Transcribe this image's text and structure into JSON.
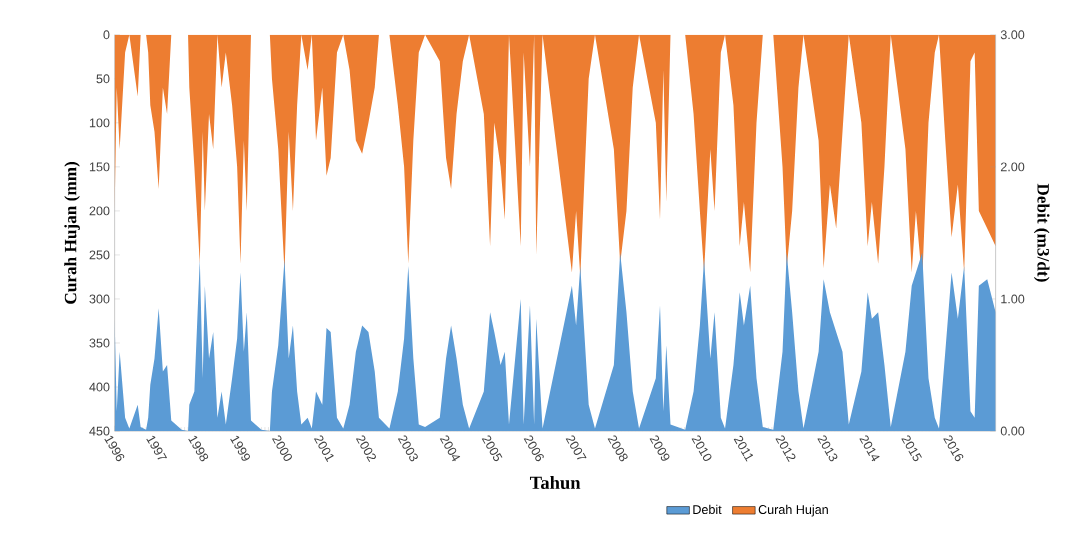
{
  "chart_data": {
    "type": "area",
    "xlabel": "Tahun",
    "ylabel": "Curah Hujan (mm)",
    "y2label": "Debit (m3/dt)",
    "x": [
      1996.0,
      1996.05,
      1996.12,
      1996.25,
      1996.35,
      1996.55,
      1996.62,
      1996.75,
      1996.8,
      1996.85,
      1996.95,
      1997.05,
      1997.15,
      1997.25,
      1997.35,
      1997.6,
      1997.75,
      1997.78,
      1997.9,
      1998.03,
      1998.1,
      1998.15,
      1998.25,
      1998.35,
      1998.45,
      1998.55,
      1998.65,
      1998.8,
      1998.92,
      1999.0,
      1999.08,
      1999.15,
      1999.25,
      1999.5,
      1999.7,
      1999.75,
      1999.9,
      2000.05,
      2000.15,
      2000.25,
      2000.35,
      2000.45,
      2000.6,
      2000.7,
      2000.8,
      2000.95,
      2001.05,
      2001.15,
      2001.3,
      2001.45,
      2001.6,
      2001.75,
      2001.9,
      2002.05,
      2002.2,
      2002.3,
      2002.55,
      2002.75,
      2002.9,
      2003.0,
      2003.12,
      2003.25,
      2003.4,
      2003.75,
      2003.9,
      2004.02,
      2004.15,
      2004.3,
      2004.45,
      2004.8,
      2004.95,
      2005.05,
      2005.2,
      2005.3,
      2005.4,
      2005.68,
      2005.75,
      2005.9,
      2006.0,
      2006.05,
      2006.2,
      2006.9,
      2007.0,
      2007.1,
      2007.3,
      2007.45,
      2007.9,
      2008.05,
      2008.2,
      2008.35,
      2008.5,
      2008.9,
      2009.0,
      2009.08,
      2009.15,
      2009.25,
      2009.6,
      2009.8,
      2009.95,
      2010.05,
      2010.2,
      2010.3,
      2010.45,
      2010.55,
      2010.75,
      2010.9,
      2011.0,
      2011.15,
      2011.3,
      2011.45,
      2011.7,
      2011.92,
      2012.02,
      2012.15,
      2012.3,
      2012.42,
      2012.78,
      2012.9,
      2013.05,
      2013.2,
      2013.35,
      2013.5,
      2013.8,
      2013.95,
      2014.05,
      2014.2,
      2014.35,
      2014.5,
      2014.85,
      2015.0,
      2015.1,
      2015.25,
      2015.4,
      2015.55,
      2015.65,
      2015.8,
      2015.95,
      2016.1,
      2016.25,
      2016.4,
      2016.5,
      2016.6,
      2016.8,
      2017.0
    ],
    "series": [
      {
        "name": "Debit",
        "color": "#5b9bd5",
        "axis": "y2",
        "values": [
          0.85,
          0.15,
          0.6,
          0.1,
          0.02,
          0.2,
          0.03,
          0.01,
          0.1,
          0.35,
          0.55,
          0.93,
          0.45,
          0.5,
          0.08,
          0.01,
          0,
          0.2,
          0.3,
          1.3,
          0.4,
          1.1,
          0.55,
          0.75,
          0.1,
          0.3,
          0.05,
          0.4,
          0.7,
          1.2,
          0.6,
          0.9,
          0.08,
          0.01,
          0,
          0.3,
          0.65,
          1.3,
          0.55,
          0.8,
          0.3,
          0.05,
          0.1,
          0.02,
          0.3,
          0.2,
          0.78,
          0.75,
          0.1,
          0.02,
          0.2,
          0.6,
          0.8,
          0.75,
          0.45,
          0.1,
          0.02,
          0.3,
          0.7,
          1.25,
          0.55,
          0.05,
          0.03,
          0.1,
          0.55,
          0.8,
          0.55,
          0.2,
          0.02,
          0.3,
          0.9,
          0.75,
          0.5,
          0.6,
          0.05,
          1.0,
          0.05,
          0.95,
          0.05,
          0.85,
          0.02,
          1.1,
          0.8,
          1.25,
          0.2,
          0.02,
          0.5,
          1.35,
          0.9,
          0.3,
          0.02,
          0.4,
          0.95,
          0.15,
          0.65,
          0.05,
          0.01,
          0.3,
          0.8,
          1.3,
          0.55,
          0.9,
          0.1,
          0.02,
          0.5,
          1.05,
          0.8,
          1.1,
          0.4,
          0.03,
          0.01,
          0.6,
          1.35,
          0.9,
          0.3,
          0.02,
          0.6,
          1.15,
          0.9,
          0.75,
          0.6,
          0.05,
          0.45,
          1.05,
          0.85,
          0.9,
          0.5,
          0.03,
          0.6,
          1.1,
          1.2,
          1.35,
          0.4,
          0.1,
          0.02,
          0.6,
          1.2,
          0.85,
          1.25,
          0.15,
          0.1,
          1.1,
          1.15,
          0.9
        ]
      },
      {
        "name": "Curah Hujan",
        "color": "#ed7d31",
        "axis": "y",
        "values": [
          200,
          60,
          130,
          20,
          0,
          70,
          0,
          0,
          20,
          80,
          110,
          175,
          60,
          90,
          0,
          0,
          0,
          60,
          150,
          260,
          110,
          200,
          90,
          130,
          0,
          60,
          20,
          80,
          150,
          260,
          120,
          200,
          0,
          0,
          0,
          50,
          130,
          270,
          110,
          200,
          80,
          0,
          40,
          0,
          120,
          60,
          160,
          140,
          20,
          0,
          40,
          120,
          135,
          100,
          60,
          0,
          0,
          80,
          150,
          260,
          120,
          20,
          0,
          30,
          140,
          175,
          90,
          30,
          0,
          90,
          240,
          100,
          150,
          210,
          0,
          240,
          20,
          150,
          0,
          250,
          0,
          270,
          200,
          275,
          50,
          0,
          130,
          260,
          200,
          60,
          0,
          100,
          210,
          40,
          190,
          0,
          0,
          90,
          200,
          270,
          130,
          200,
          20,
          0,
          80,
          240,
          190,
          270,
          100,
          0,
          0,
          150,
          265,
          200,
          60,
          0,
          120,
          265,
          170,
          220,
          110,
          0,
          100,
          240,
          190,
          260,
          150,
          0,
          130,
          270,
          200,
          280,
          100,
          20,
          0,
          120,
          230,
          170,
          270,
          30,
          20,
          200,
          220,
          240
        ]
      }
    ],
    "xlim": [
      1996,
      2017
    ],
    "xticks": [
      1996,
      1997,
      1998,
      1999,
      2000,
      2001,
      2002,
      2003,
      2004,
      2005,
      2006,
      2007,
      2008,
      2009,
      2010,
      2011,
      2012,
      2013,
      2014,
      2015,
      2016
    ],
    "ylim": [
      450,
      0
    ],
    "yticks": [
      0,
      50,
      100,
      150,
      200,
      250,
      300,
      350,
      400,
      450
    ],
    "y2lim": [
      0,
      3
    ],
    "y2ticks": [
      {
        "value": 0,
        "label": "0.00"
      },
      {
        "value": 1,
        "label": "1.00"
      },
      {
        "value": 2,
        "label": "2.00"
      },
      {
        "value": 3,
        "label": "3.00"
      }
    ],
    "legend": "bottom"
  }
}
